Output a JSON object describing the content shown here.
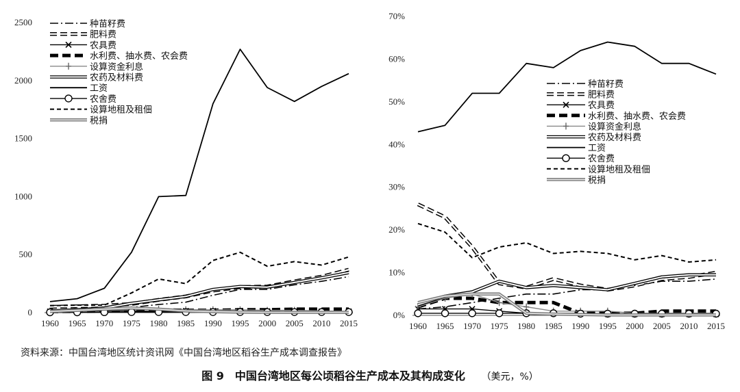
{
  "caption": {
    "title": "图 9　中国台湾地区每公顷稻谷生产成本及其构成变化",
    "unit": "（美元，%）"
  },
  "source": "资料来源：中国台湾地区统计资讯网《中国台湾地区稻谷生产成本调查报告》",
  "chart_data": [
    {
      "type": "line",
      "title": "",
      "xlabel": "",
      "ylabel": "",
      "ylim": [
        0,
        2500
      ],
      "yticks": [
        0,
        500,
        1000,
        1500,
        2000,
        2500
      ],
      "x": [
        1960,
        1965,
        1970,
        1975,
        1980,
        1985,
        1990,
        1995,
        2000,
        2005,
        2010,
        2015
      ],
      "legend_position": "top-left",
      "series": [
        {
          "name": "种苗籽费",
          "style": "dashdot",
          "values": [
            10,
            15,
            20,
            45,
            70,
            90,
            150,
            200,
            200,
            240,
            270,
            310
          ]
        },
        {
          "name": "肥料费",
          "style": "hollow-dash",
          "values": [
            50,
            55,
            60,
            75,
            110,
            140,
            190,
            220,
            225,
            270,
            310,
            370
          ]
        },
        {
          "name": "农具费",
          "style": "x-marker",
          "values": [
            10,
            12,
            15,
            15,
            10,
            15,
            15,
            15,
            12,
            10,
            10,
            10
          ]
        },
        {
          "name": "水利费、抽水费、农会费",
          "style": "thick-dash",
          "values": [
            10,
            12,
            15,
            20,
            25,
            20,
            20,
            25,
            25,
            30,
            30,
            30
          ]
        },
        {
          "name": "设算资金利息",
          "style": "plus-gray",
          "values": [
            15,
            18,
            20,
            25,
            30,
            25,
            25,
            25,
            20,
            20,
            15,
            10
          ]
        },
        {
          "name": "农药及材料费",
          "style": "hollow",
          "values": [
            15,
            25,
            40,
            80,
            110,
            140,
            200,
            225,
            220,
            260,
            300,
            345
          ]
        },
        {
          "name": "工资",
          "style": "solid",
          "values": [
            95,
            120,
            210,
            520,
            1000,
            1010,
            1800,
            2270,
            1940,
            1820,
            1950,
            2060
          ]
        },
        {
          "name": "农舍费",
          "style": "circle",
          "values": [
            3,
            3,
            4,
            5,
            5,
            5,
            5,
            5,
            5,
            5,
            5,
            5
          ]
        },
        {
          "name": "设算地租及租佃",
          "style": "dashed",
          "values": [
            60,
            65,
            65,
            170,
            290,
            250,
            450,
            520,
            400,
            440,
            410,
            480
          ]
        },
        {
          "name": "税捐",
          "style": "gray-double",
          "values": [
            10,
            20,
            30,
            40,
            30,
            15,
            8,
            5,
            3,
            3,
            3,
            3
          ]
        }
      ]
    },
    {
      "type": "line",
      "title": "",
      "xlabel": "",
      "ylabel": "",
      "ylim": [
        0,
        70
      ],
      "yticks": [
        "0%",
        "10%",
        "20%",
        "30%",
        "40%",
        "50%",
        "60%",
        "70%"
      ],
      "y_unit": "%",
      "x": [
        1960,
        1965,
        1970,
        1975,
        1980,
        1985,
        1990,
        1995,
        2000,
        2005,
        2010,
        2015
      ],
      "legend_position": "center",
      "series": [
        {
          "name": "种苗籽费",
          "style": "dashdot",
          "values": [
            1.5,
            2,
            3,
            4,
            5,
            5,
            6,
            6,
            7,
            8,
            8,
            8.5
          ]
        },
        {
          "name": "肥料费",
          "style": "hollow-dash",
          "values": [
            26,
            23,
            16,
            7.5,
            6.5,
            8.5,
            7,
            6,
            7,
            8.5,
            9,
            10
          ]
        },
        {
          "name": "农具费",
          "style": "x-marker",
          "values": [
            1.5,
            1.5,
            1.5,
            1,
            0.5,
            0.5,
            0.5,
            0.3,
            0.3,
            0.3,
            0.3,
            0.3
          ]
        },
        {
          "name": "水利费、抽水费、农会费",
          "style": "thick-dash",
          "values": [
            2,
            4,
            4,
            3,
            3,
            3,
            0.5,
            0.5,
            0.5,
            1,
            1,
            1
          ]
        },
        {
          "name": "设算资金利息",
          "style": "plus-gray",
          "values": [
            2,
            4,
            5,
            3,
            2,
            1,
            1,
            1,
            0.5,
            0.5,
            0.5,
            0.5
          ]
        },
        {
          "name": "农药及材料费",
          "style": "hollow",
          "values": [
            2.5,
            4.5,
            5.5,
            8,
            6.5,
            7,
            6.5,
            6,
            7.5,
            9,
            9.5,
            9.5
          ]
        },
        {
          "name": "工资",
          "style": "solid",
          "values": [
            43,
            44.5,
            52,
            52,
            59,
            58,
            62,
            64,
            63,
            59,
            59,
            56.5
          ]
        },
        {
          "name": "农舍费",
          "style": "circle",
          "values": [
            0.5,
            0.5,
            0.5,
            0.5,
            0.5,
            0.5,
            0.4,
            0.4,
            0.4,
            0.4,
            0.4,
            0.4
          ]
        },
        {
          "name": "设算地租及租佃",
          "style": "dashed",
          "values": [
            21.5,
            19.5,
            13.5,
            16,
            17,
            14.5,
            15,
            14.5,
            13,
            14,
            12.5,
            13
          ]
        },
        {
          "name": "税捐",
          "style": "gray-double",
          "values": [
            3,
            4.5,
            5,
            5,
            0.5,
            0.3,
            0.2,
            0.1,
            0.1,
            0.1,
            0.1,
            0.1
          ]
        }
      ]
    }
  ]
}
